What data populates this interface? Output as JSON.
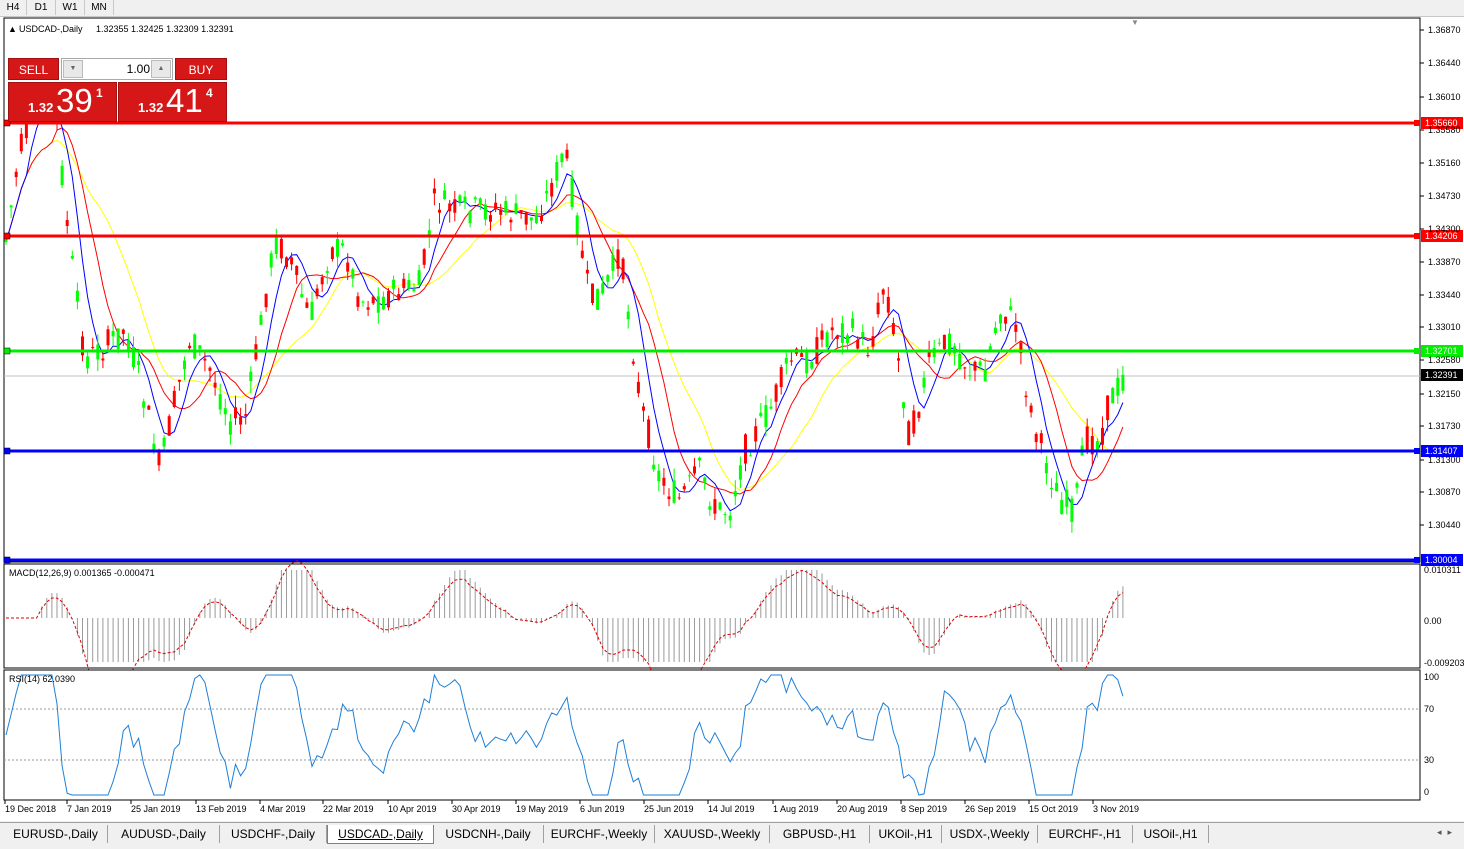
{
  "timeframes": [
    "H4",
    "D1",
    "W1",
    "MN"
  ],
  "chart": {
    "title": "USDCAD-,Daily",
    "ohlc": "1.32355 1.32425 1.32309 1.32391",
    "price_scale": [
      "1.36870",
      "1.36440",
      "1.36010",
      "1.35580",
      "1.35160",
      "1.34730",
      "1.34300",
      "1.33870",
      "1.33440",
      "1.33010",
      "1.32580",
      "1.32150",
      "1.31730",
      "1.31300",
      "1.30870",
      "1.30440"
    ],
    "current_price": "1.32391",
    "levels": [
      {
        "label": "1.35660",
        "color": "#ff0000"
      },
      {
        "label": "1.34206",
        "color": "#ff0000"
      },
      {
        "label": "1.32701",
        "color": "#00ee00"
      },
      {
        "label": "1.31407",
        "color": "#0000ff"
      },
      {
        "label": "1.30004",
        "color": "#0000ff"
      }
    ],
    "dates": [
      "19 Dec 2018",
      "7 Jan 2019",
      "25 Jan 2019",
      "13 Feb 2019",
      "4 Mar 2019",
      "22 Mar 2019",
      "10 Apr 2019",
      "30 Apr 2019",
      "19 May 2019",
      "6 Jun 2019",
      "25 Jun 2019",
      "14 Jul 2019",
      "1 Aug 2019",
      "20 Aug 2019",
      "8 Sep 2019",
      "26 Sep 2019",
      "15 Oct 2019",
      "3 Nov 2019"
    ],
    "colors": {
      "bull": "#ff0000",
      "bear": "#00ff00",
      "ma_fast": "#0000ff",
      "ma_mid": "#ff0000",
      "ma_slow": "#ffff00",
      "current_line": "#c0c0c0"
    }
  },
  "macd": {
    "label": "MACD(12,26,9) 0.001365 -0.000471",
    "scale": [
      "0.010311",
      "0.00",
      "-0.009203"
    ]
  },
  "rsi": {
    "label": "RSI(14) 62.0390",
    "scale": [
      "100",
      "70",
      "30",
      "0"
    ]
  },
  "trade_panel": {
    "sell_label": "SELL",
    "buy_label": "BUY",
    "lot": "1.00",
    "sell_prefix": "1.32",
    "sell_big": "39",
    "sell_sup": "1",
    "buy_prefix": "1.32",
    "buy_big": "41",
    "buy_sup": "4"
  },
  "tabs": [
    "EURUSD-,Daily",
    "AUDUSD-,Daily",
    "USDCHF-,Daily",
    "USDCAD-,Daily",
    "USDCNH-,Daily",
    "EURCHF-,Weekly",
    "XAUUSD-,Weekly",
    "GBPUSD-,H1",
    "UKOil-,H1",
    "USDX-,Weekly",
    "EURCHF-,H1",
    "USOil-,H1"
  ],
  "active_tab": "USDCAD-,Daily"
}
